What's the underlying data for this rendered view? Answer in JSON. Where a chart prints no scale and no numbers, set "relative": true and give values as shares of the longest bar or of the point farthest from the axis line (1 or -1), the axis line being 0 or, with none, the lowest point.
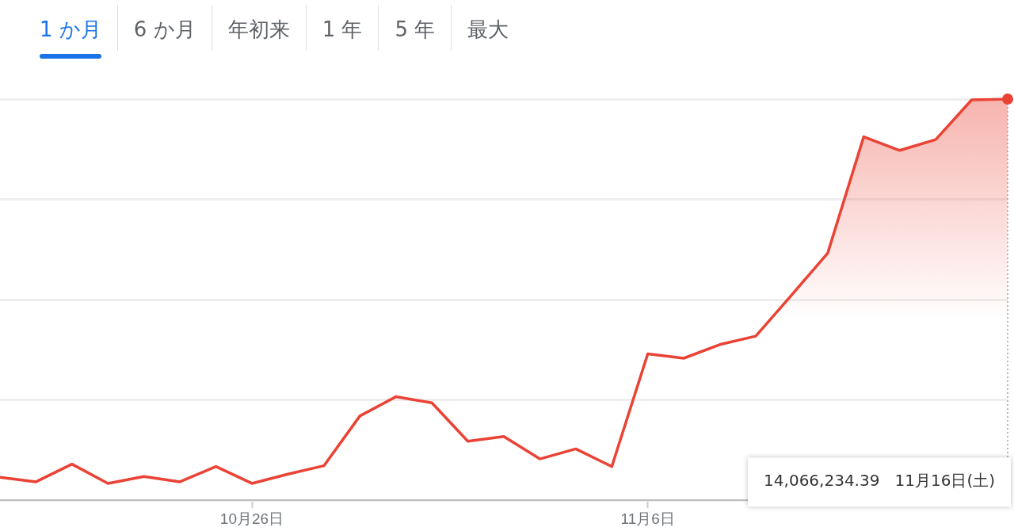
{
  "chart_data": {
    "type": "area",
    "relative": true,
    "x": [
      "--10-19",
      "--10-20",
      "--10-21",
      "--10-22",
      "--10-23",
      "--10-24",
      "--10-25",
      "--10-26",
      "--10-27",
      "--10-28",
      "--10-29",
      "--10-30",
      "--10-31",
      "--11-01",
      "--11-02",
      "--11-03",
      "--11-04",
      "--11-05",
      "--11-06",
      "--11-07",
      "--11-08",
      "--11-09",
      "--11-10",
      "--11-11",
      "--11-12",
      "--11-13",
      "--11-14",
      "--11-15",
      "--11-16"
    ],
    "series": [
      {
        "color": "#ea4335",
        "values": [
          0.057,
          0.046,
          0.09,
          0.042,
          0.059,
          0.046,
          0.084,
          0.042,
          0.065,
          0.086,
          0.21,
          0.258,
          0.243,
          0.147,
          0.159,
          0.103,
          0.128,
          0.084,
          0.365,
          0.354,
          0.388,
          0.409,
          0.512,
          0.616,
          0.906,
          0.872,
          0.899,
          0.998,
          1
        ]
      }
    ],
    "xlim": [
      "--10-19",
      "--11-16"
    ],
    "xticks": [
      {
        "value": "--10-26",
        "label": "10月26日"
      },
      {
        "value": "--11-06",
        "label": "11月6日"
      }
    ],
    "grid": "y",
    "legend": false,
    "marker": "none",
    "ref_lines": [
      {
        "axis": "x",
        "value": "--11-16",
        "color": "#9e9e9e",
        "line_style": "dotted"
      }
    ],
    "annotations": [
      "1 か月",
      "6 か月",
      "年初来",
      "1 年",
      "5 年",
      "最大",
      "14,066,234.39   11月16日(土)"
    ]
  }
}
